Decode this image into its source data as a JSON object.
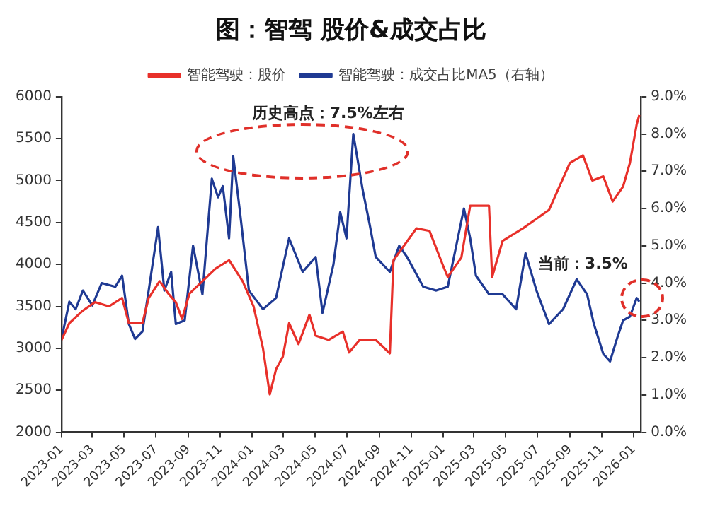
{
  "chart_data": {
    "type": "line",
    "title": "图：智驾 股价&成交占比",
    "legend": "top",
    "grid": false,
    "xlim": [
      "2023-01-01",
      "2026-01-15"
    ],
    "xticks": [
      "2023-01",
      "2023-03",
      "2023-05",
      "2023-07",
      "2023-09",
      "2023-11",
      "2024-01",
      "2024-03",
      "2024-05",
      "2024-07",
      "2024-09",
      "2024-11",
      "2025-01",
      "2025-03",
      "2025-05",
      "2025-07",
      "2025-09",
      "2025-11",
      "2026-01"
    ],
    "ylim": [
      2000,
      6000
    ],
    "yticks": [
      2000,
      2500,
      3000,
      3500,
      4000,
      4500,
      5000,
      5500,
      6000
    ],
    "y2lim": [
      0,
      9
    ],
    "y2ticks": [
      {
        "value": 0,
        "label": "0.0%"
      },
      {
        "value": 1,
        "label": "1.0%"
      },
      {
        "value": 2,
        "label": "2.0%"
      },
      {
        "value": 3,
        "label": "3.0%"
      },
      {
        "value": 4,
        "label": "4.0%"
      },
      {
        "value": 5,
        "label": "5.0%"
      },
      {
        "value": 6,
        "label": "6.0%"
      },
      {
        "value": 7,
        "label": "7.0%"
      },
      {
        "value": 8,
        "label": "8.0%"
      },
      {
        "value": 9,
        "label": "9.0%"
      }
    ],
    "annotations": [
      "历史高点：7.5%左右",
      "当前：3.5%"
    ],
    "series": [
      {
        "name": "智能驾驶：股价",
        "color": "#e8302a",
        "x": [
          "2023-01-01",
          "2023-01-16",
          "2023-02-11",
          "2023-03-06",
          "2023-04-02",
          "2023-04-27",
          "2023-05-10",
          "2023-06-05",
          "2023-06-17",
          "2023-07-08",
          "2023-07-25",
          "2023-08-08",
          "2023-08-20",
          "2023-09-03",
          "2023-09-28",
          "2023-10-23",
          "2023-11-18",
          "2023-12-14",
          "2024-01-04",
          "2024-01-22",
          "2024-02-04",
          "2024-02-16",
          "2024-02-29",
          "2024-03-12",
          "2024-03-30",
          "2024-04-20",
          "2024-05-02",
          "2024-05-27",
          "2024-06-23",
          "2024-07-05",
          "2024-07-25",
          "2024-08-25",
          "2024-09-21",
          "2024-09-28",
          "2024-11-11",
          "2024-12-06",
          "2025-01-02",
          "2025-01-10",
          "2025-02-05",
          "2025-02-22",
          "2025-03-30",
          "2025-04-05",
          "2025-04-25",
          "2025-06-03",
          "2025-07-23",
          "2025-09-01",
          "2025-09-26",
          "2025-10-14",
          "2025-11-04",
          "2025-11-22",
          "2025-12-12",
          "2025-12-25",
          "2026-01-07",
          "2026-01-12"
        ],
        "values": [
          3100,
          3300,
          3450,
          3550,
          3500,
          3600,
          3300,
          3300,
          3600,
          3800,
          3650,
          3550,
          3350,
          3650,
          3800,
          3950,
          4050,
          3800,
          3500,
          3000,
          2450,
          2750,
          2900,
          3300,
          3050,
          3400,
          3150,
          3100,
          3200,
          2950,
          3100,
          3100,
          2940,
          4050,
          4430,
          4400,
          3970,
          3850,
          4080,
          4700,
          4700,
          3850,
          4280,
          4430,
          4650,
          5210,
          5300,
          5000,
          5050,
          4750,
          4930,
          5210,
          5670,
          5780
        ]
      },
      {
        "name": "智能驾驶：成交占比MA5（右轴）",
        "color": "#1f3a93",
        "axis": "y2",
        "x": [
          "2023-01-01",
          "2023-01-16",
          "2023-01-28",
          "2023-02-11",
          "2023-03-01",
          "2023-03-19",
          "2023-04-14",
          "2023-04-27",
          "2023-05-10",
          "2023-05-22",
          "2023-06-05",
          "2023-06-17",
          "2023-07-05",
          "2023-07-17",
          "2023-07-30",
          "2023-08-08",
          "2023-08-25",
          "2023-09-10",
          "2023-09-28",
          "2023-10-16",
          "2023-10-28",
          "2023-11-06",
          "2023-11-18",
          "2023-11-26",
          "2023-12-09",
          "2023-12-26",
          "2024-01-22",
          "2024-02-16",
          "2024-03-12",
          "2024-04-07",
          "2024-05-02",
          "2024-05-15",
          "2024-06-05",
          "2024-06-18",
          "2024-06-30",
          "2024-07-13",
          "2024-07-31",
          "2024-08-13",
          "2024-08-25",
          "2024-09-21",
          "2024-10-09",
          "2024-10-24",
          "2024-11-24",
          "2024-12-19",
          "2025-01-10",
          "2025-02-10",
          "2025-02-22",
          "2025-03-05",
          "2025-03-30",
          "2025-04-25",
          "2025-05-21",
          "2025-06-08",
          "2025-06-29",
          "2025-07-23",
          "2025-08-19",
          "2025-09-14",
          "2025-10-04",
          "2025-10-17",
          "2025-11-04",
          "2025-11-17",
          "2025-11-30",
          "2025-12-12",
          "2025-12-25",
          "2026-01-07",
          "2026-01-12"
        ],
        "values": [
          2.5,
          3.5,
          3.3,
          3.8,
          3.4,
          4.0,
          3.9,
          4.2,
          2.9,
          2.5,
          2.7,
          3.8,
          5.5,
          3.8,
          4.3,
          2.9,
          3.0,
          5.0,
          3.7,
          6.8,
          6.3,
          6.6,
          5.2,
          7.4,
          5.9,
          3.8,
          3.3,
          3.6,
          5.2,
          4.3,
          4.7,
          3.2,
          4.5,
          5.9,
          5.2,
          8.0,
          6.5,
          5.6,
          4.7,
          4.3,
          5.0,
          4.7,
          3.9,
          3.8,
          3.9,
          6.0,
          5.2,
          4.2,
          3.7,
          3.7,
          3.3,
          4.8,
          3.8,
          2.9,
          3.3,
          4.1,
          3.7,
          2.9,
          2.1,
          1.9,
          2.5,
          3.0,
          3.1,
          3.6,
          3.5
        ]
      }
    ]
  }
}
